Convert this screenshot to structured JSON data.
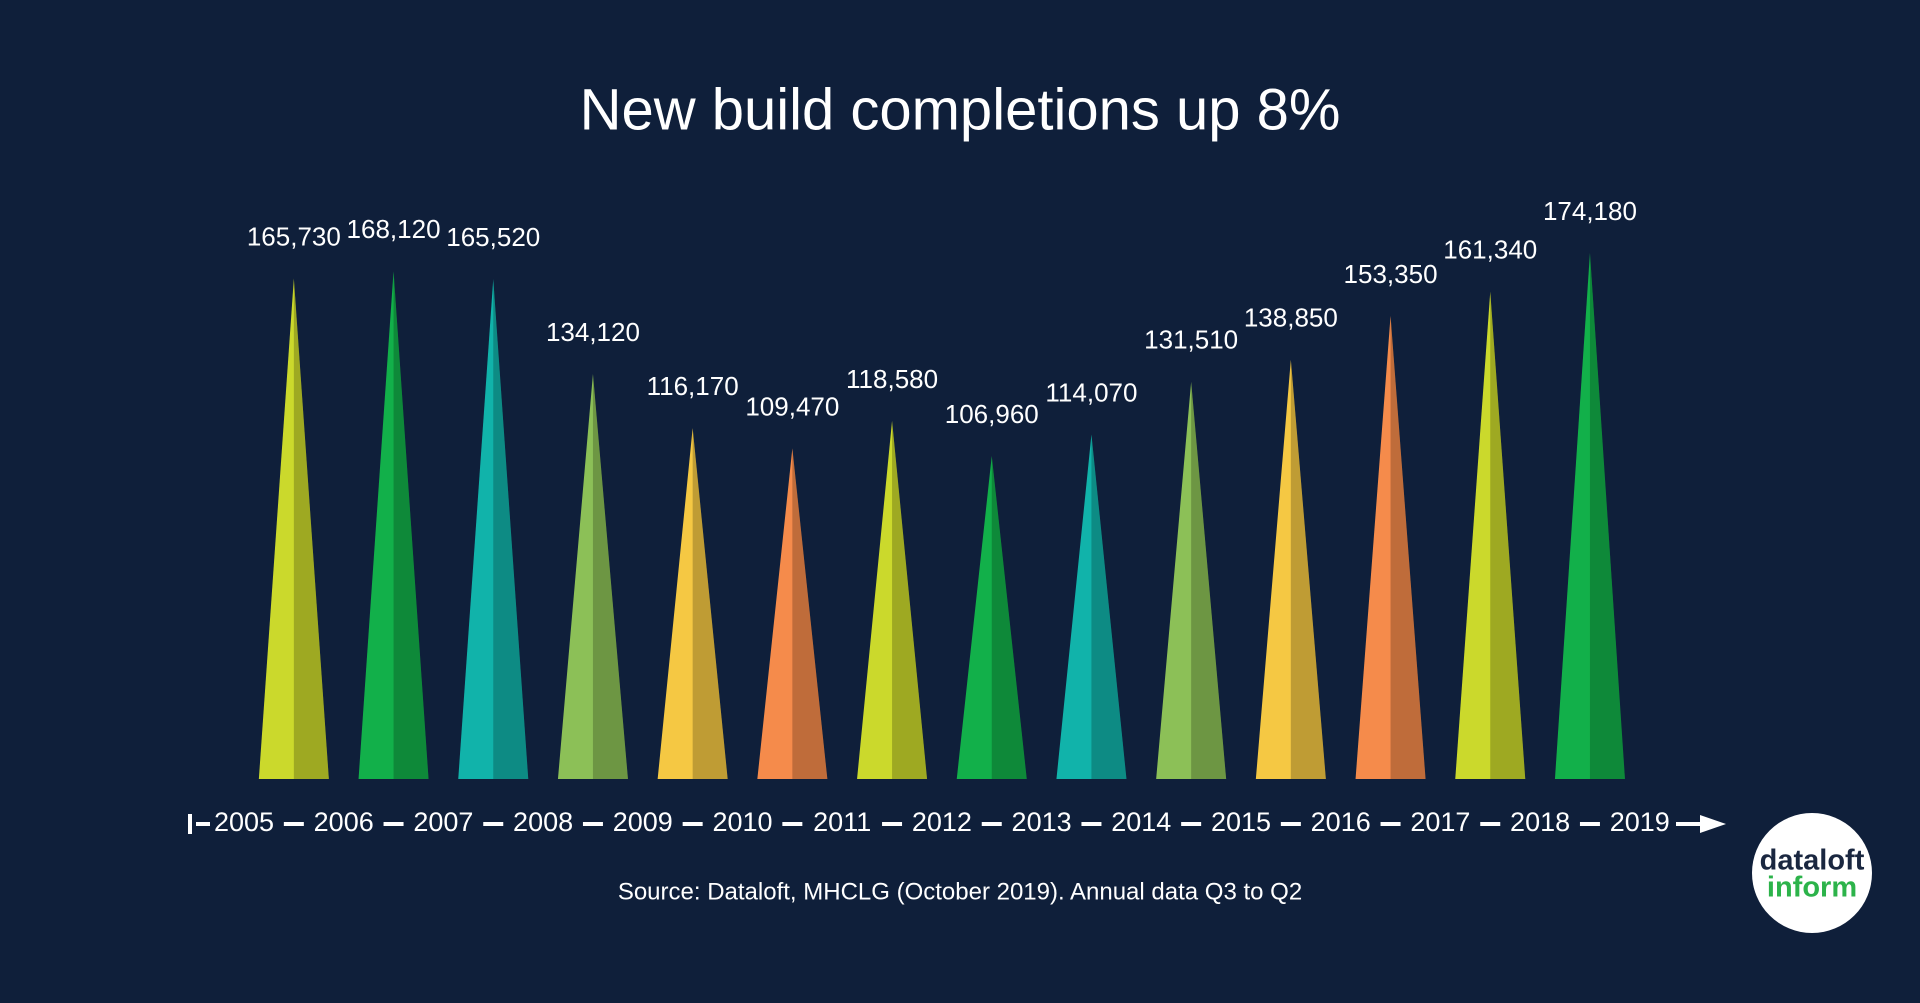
{
  "chart_data": {
    "type": "triangle",
    "title": "New build completions up 8%",
    "source": "Source: Dataloft, MHCLG (October 2019). Annual data Q3 to Q2",
    "timeline": [
      "2005",
      "2006",
      "2007",
      "2008",
      "2009",
      "2010",
      "2011",
      "2012",
      "2013",
      "2014",
      "2015",
      "2016",
      "2017",
      "2018",
      "2019"
    ],
    "values": [
      165730,
      168120,
      165520,
      134120,
      116170,
      109470,
      118580,
      106960,
      114070,
      131510,
      138850,
      153350,
      161340,
      174180
    ],
    "value_labels": [
      "165,730",
      "168,120",
      "165,520",
      "134,120",
      "116,170",
      "109,470",
      "118,580",
      "106,960",
      "114,070",
      "131,510",
      "138,850",
      "153,350",
      "161,340",
      "174,180"
    ],
    "colors": [
      "#cbd92c",
      "#12b04a",
      "#11b3aa",
      "#8cc057",
      "#f5c843",
      "#f58b4b",
      "#cbd92c",
      "#12b04a",
      "#11b3aa",
      "#8cc057",
      "#f5c843",
      "#f58b4b",
      "#cbd92c",
      "#12b04a"
    ],
    "logo": [
      "dataloft",
      "inform"
    ]
  }
}
